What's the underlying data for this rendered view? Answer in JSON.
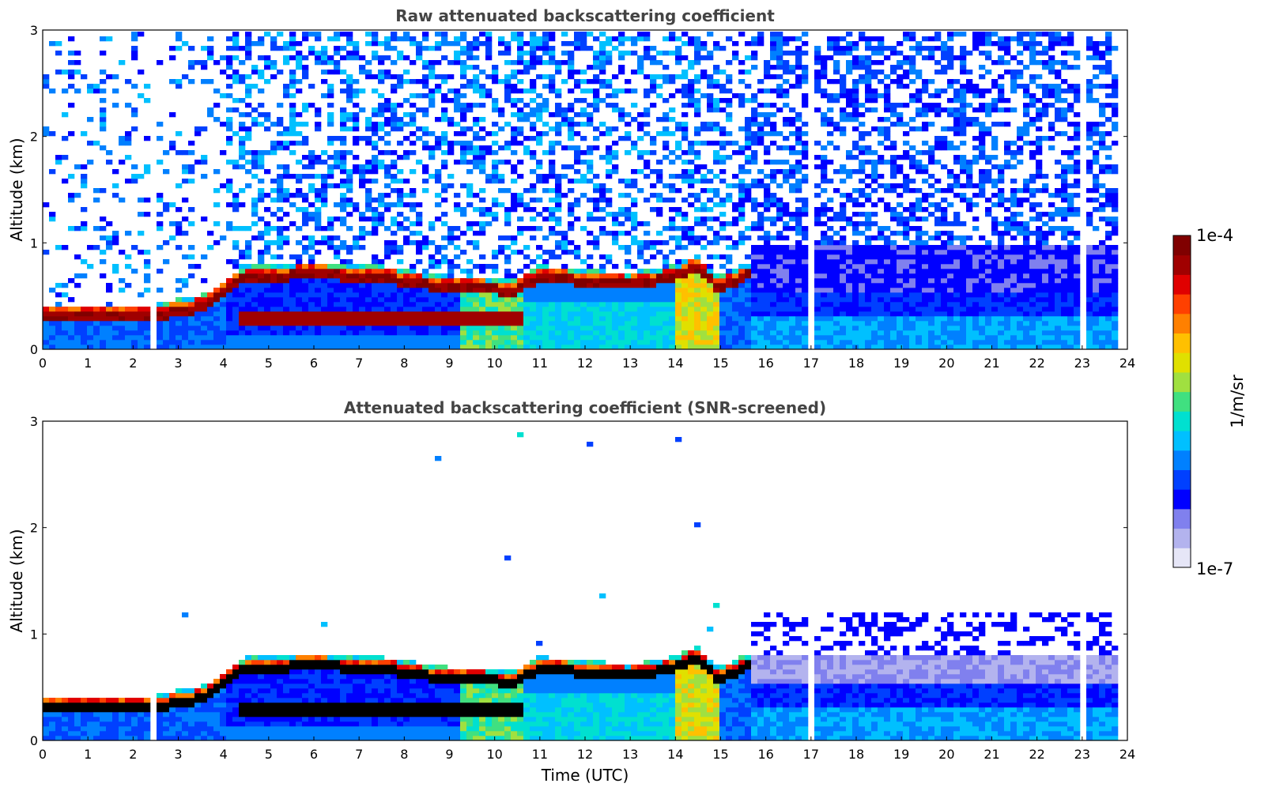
{
  "chart_data": [
    {
      "type": "heatmap",
      "title": "Raw attenuated backscattering coefficient",
      "xlabel": "",
      "ylabel": "Altitude (km)",
      "xlim": [
        0,
        24
      ],
      "ylim": [
        0,
        3
      ],
      "xticks": [
        "0",
        "1",
        "2",
        "3",
        "4",
        "5",
        "6",
        "7",
        "8",
        "9",
        "10",
        "11",
        "12",
        "13",
        "14",
        "15",
        "16",
        "17",
        "18",
        "19",
        "20",
        "21",
        "22",
        "23",
        "24"
      ],
      "yticks": [
        "0",
        "1",
        "2",
        "3"
      ],
      "layers": {
        "main_layer_top_km": [
          [
            0,
            0.35
          ],
          [
            2.4,
            0.35
          ],
          [
            3.6,
            0.45
          ],
          [
            4.5,
            0.72
          ],
          [
            6,
            0.75
          ],
          [
            7.5,
            0.72
          ],
          [
            9,
            0.62
          ],
          [
            10.5,
            0.6
          ],
          [
            11,
            0.72
          ],
          [
            13,
            0.65
          ],
          [
            14,
            0.72
          ],
          [
            14.5,
            0.82
          ],
          [
            15,
            0.62
          ],
          [
            15.7,
            0.75
          ]
        ],
        "data_gaps_hours": [
          2.5,
          16.1,
          17.05,
          23.1
        ]
      }
    },
    {
      "type": "heatmap",
      "title": "Attenuated backscattering coefficient (SNR-screened)",
      "xlabel": "Time (UTC)",
      "ylabel": "Altitude (km)",
      "xlim": [
        0,
        24
      ],
      "ylim": [
        0,
        3
      ],
      "xticks": [
        "0",
        "1",
        "2",
        "3",
        "4",
        "5",
        "6",
        "7",
        "8",
        "9",
        "10",
        "11",
        "12",
        "13",
        "14",
        "15",
        "16",
        "17",
        "18",
        "19",
        "20",
        "21",
        "22",
        "23",
        "24"
      ],
      "yticks": [
        "0",
        "1",
        "2",
        "3"
      ]
    }
  ],
  "colorbar": {
    "label": "1/m/sr",
    "max_label": "1e-4",
    "min_label": "1e-7",
    "colors": [
      "#e6e6f7",
      "#b3b3ee",
      "#8080ee",
      "#0000ff",
      "#0040ff",
      "#0080ff",
      "#00c0ff",
      "#00e0d0",
      "#40e080",
      "#a0e040",
      "#e0e000",
      "#ffc000",
      "#ff8000",
      "#ff4000",
      "#e00000",
      "#a00000",
      "#800000"
    ]
  }
}
